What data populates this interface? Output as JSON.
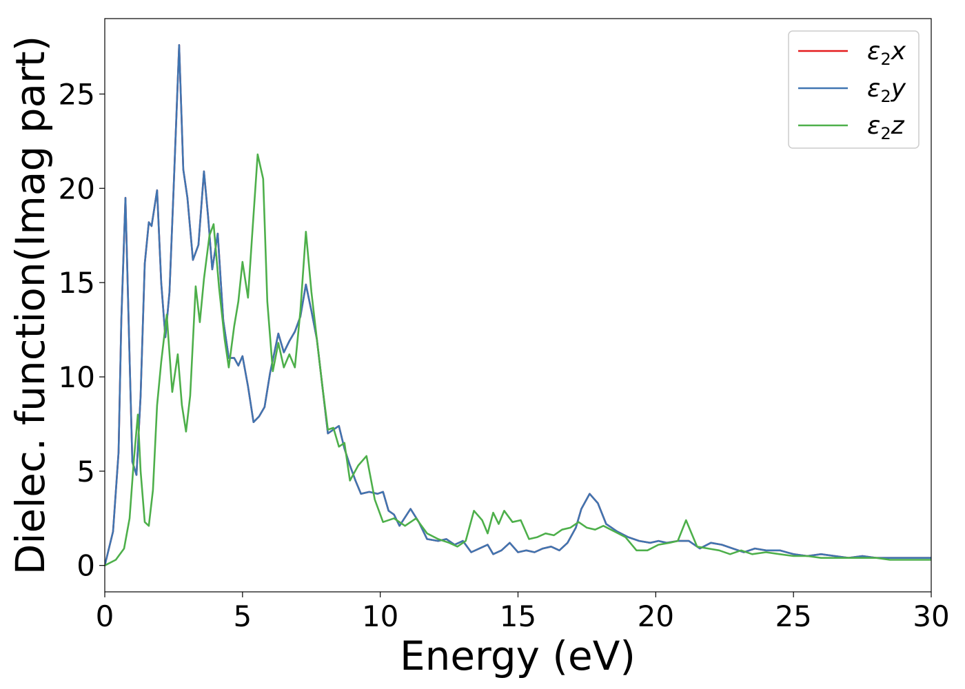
{
  "chart_data": {
    "type": "line",
    "title": "",
    "xlabel": "Energy (eV)",
    "ylabel": "Dielec. function(Imag part)",
    "xlim": [
      0,
      30
    ],
    "ylim": [
      -1.4,
      29
    ],
    "xticks": [
      0,
      5,
      10,
      15,
      20,
      25,
      30
    ],
    "yticks": [
      0,
      5,
      10,
      15,
      20,
      25
    ],
    "grid": false,
    "legend_position": "top-right",
    "series": [
      {
        "name": "ε₂x",
        "legend_main": "ε",
        "legend_sub": "2",
        "legend_suffix": "x",
        "color": "#e41a1c",
        "x": [
          0,
          0.3,
          0.5,
          0.6,
          0.75,
          0.9,
          1.0,
          1.15,
          1.3,
          1.45,
          1.6,
          1.7,
          1.9,
          2.05,
          2.2,
          2.35,
          2.5,
          2.7,
          2.85,
          3.0,
          3.2,
          3.4,
          3.6,
          3.75,
          3.9,
          4.1,
          4.3,
          4.5,
          4.7,
          4.85,
          5.0,
          5.2,
          5.4,
          5.6,
          5.8,
          6.0,
          6.3,
          6.5,
          6.7,
          6.9,
          7.1,
          7.3,
          7.5,
          7.7,
          7.9,
          8.1,
          8.3,
          8.5,
          8.7,
          8.9,
          9.1,
          9.3,
          9.6,
          9.9,
          10.1,
          10.3,
          10.5,
          10.7,
          11.1,
          11.4,
          11.7,
          12.1,
          12.4,
          12.7,
          13.0,
          13.3,
          13.6,
          13.9,
          14.1,
          14.4,
          14.7,
          15.0,
          15.3,
          15.6,
          15.9,
          16.2,
          16.5,
          16.8,
          17.1,
          17.3,
          17.6,
          17.9,
          18.2,
          18.6,
          19.0,
          19.4,
          19.8,
          20.1,
          20.4,
          20.8,
          21.2,
          21.6,
          22.0,
          22.4,
          22.8,
          23.2,
          23.6,
          24.0,
          24.5,
          25.0,
          25.5,
          26.0,
          26.5,
          27.0,
          27.5,
          28.0,
          28.5,
          29.0,
          29.5,
          30.0
        ],
        "y": [
          0,
          1.8,
          6,
          13,
          19.5,
          11,
          5.5,
          4.8,
          9,
          16,
          18.2,
          18,
          19.9,
          15,
          12.1,
          14.5,
          20,
          27.6,
          21,
          19.5,
          16.2,
          17,
          20.9,
          18.5,
          15.7,
          17.6,
          13,
          11,
          11,
          10.6,
          11.1,
          9.5,
          7.6,
          7.9,
          8.4,
          10.2,
          12.3,
          11.3,
          11.9,
          12.4,
          13.2,
          14.9,
          13.5,
          12,
          9.5,
          7,
          7.2,
          7.4,
          6.2,
          5.3,
          4.5,
          3.8,
          3.9,
          3.8,
          3.9,
          2.9,
          2.7,
          2.1,
          3,
          2.3,
          1.4,
          1.3,
          1.4,
          1.1,
          1.3,
          0.7,
          0.9,
          1.1,
          0.6,
          0.8,
          1.2,
          0.7,
          0.8,
          0.7,
          0.9,
          1.0,
          0.8,
          1.2,
          2.0,
          3.0,
          3.8,
          3.3,
          2.2,
          1.8,
          1.5,
          1.3,
          1.2,
          1.3,
          1.2,
          1.3,
          1.3,
          0.9,
          1.2,
          1.1,
          0.9,
          0.7,
          0.9,
          0.8,
          0.8,
          0.6,
          0.5,
          0.6,
          0.5,
          0.4,
          0.5,
          0.4,
          0.4,
          0.4,
          0.4,
          0.4
        ]
      },
      {
        "name": "ε₂y",
        "legend_main": "ε",
        "legend_sub": "2",
        "legend_suffix": "y",
        "color": "#3f75b1",
        "x": [
          0,
          0.3,
          0.5,
          0.6,
          0.75,
          0.9,
          1.0,
          1.15,
          1.3,
          1.45,
          1.6,
          1.7,
          1.9,
          2.05,
          2.2,
          2.35,
          2.5,
          2.7,
          2.85,
          3.0,
          3.2,
          3.4,
          3.6,
          3.75,
          3.9,
          4.1,
          4.3,
          4.5,
          4.7,
          4.85,
          5.0,
          5.2,
          5.4,
          5.6,
          5.8,
          6.0,
          6.3,
          6.5,
          6.7,
          6.9,
          7.1,
          7.3,
          7.5,
          7.7,
          7.9,
          8.1,
          8.3,
          8.5,
          8.7,
          8.9,
          9.1,
          9.3,
          9.6,
          9.9,
          10.1,
          10.3,
          10.5,
          10.7,
          11.1,
          11.4,
          11.7,
          12.1,
          12.4,
          12.7,
          13.0,
          13.3,
          13.6,
          13.9,
          14.1,
          14.4,
          14.7,
          15.0,
          15.3,
          15.6,
          15.9,
          16.2,
          16.5,
          16.8,
          17.1,
          17.3,
          17.6,
          17.9,
          18.2,
          18.6,
          19.0,
          19.4,
          19.8,
          20.1,
          20.4,
          20.8,
          21.2,
          21.6,
          22.0,
          22.4,
          22.8,
          23.2,
          23.6,
          24.0,
          24.5,
          25.0,
          25.5,
          26.0,
          26.5,
          27.0,
          27.5,
          28.0,
          28.5,
          29.0,
          29.5,
          30.0
        ],
        "y": [
          0,
          1.8,
          6,
          13,
          19.5,
          11,
          5.5,
          4.8,
          9,
          16,
          18.2,
          18,
          19.9,
          15,
          12.1,
          14.5,
          20,
          27.6,
          21,
          19.5,
          16.2,
          17,
          20.9,
          18.5,
          15.7,
          17.6,
          13,
          11,
          11,
          10.6,
          11.1,
          9.5,
          7.6,
          7.9,
          8.4,
          10.2,
          12.3,
          11.3,
          11.9,
          12.4,
          13.2,
          14.9,
          13.5,
          12,
          9.5,
          7,
          7.2,
          7.4,
          6.2,
          5.3,
          4.5,
          3.8,
          3.9,
          3.8,
          3.9,
          2.9,
          2.7,
          2.1,
          3,
          2.3,
          1.4,
          1.3,
          1.4,
          1.1,
          1.3,
          0.7,
          0.9,
          1.1,
          0.6,
          0.8,
          1.2,
          0.7,
          0.8,
          0.7,
          0.9,
          1.0,
          0.8,
          1.2,
          2.0,
          3.0,
          3.8,
          3.3,
          2.2,
          1.8,
          1.5,
          1.3,
          1.2,
          1.3,
          1.2,
          1.3,
          1.3,
          0.9,
          1.2,
          1.1,
          0.9,
          0.7,
          0.9,
          0.8,
          0.8,
          0.6,
          0.5,
          0.6,
          0.5,
          0.4,
          0.5,
          0.4,
          0.4,
          0.4,
          0.4,
          0.4
        ]
      },
      {
        "name": "ε₂z",
        "legend_main": "ε",
        "legend_sub": "2",
        "legend_suffix": "z",
        "color": "#4daf4a",
        "x": [
          0,
          0.4,
          0.7,
          0.9,
          1.05,
          1.2,
          1.3,
          1.45,
          1.6,
          1.75,
          1.9,
          2.05,
          2.25,
          2.45,
          2.65,
          2.8,
          2.95,
          3.1,
          3.3,
          3.45,
          3.6,
          3.8,
          3.95,
          4.15,
          4.35,
          4.5,
          4.7,
          4.85,
          5.0,
          5.2,
          5.35,
          5.55,
          5.75,
          5.9,
          6.1,
          6.3,
          6.5,
          6.7,
          6.9,
          7.1,
          7.3,
          7.5,
          7.7,
          7.9,
          8.1,
          8.3,
          8.5,
          8.7,
          8.9,
          9.2,
          9.5,
          9.8,
          10.1,
          10.5,
          10.9,
          11.3,
          11.7,
          12.1,
          12.5,
          12.8,
          13.1,
          13.4,
          13.7,
          13.9,
          14.1,
          14.3,
          14.5,
          14.8,
          15.1,
          15.4,
          15.7,
          16.0,
          16.3,
          16.6,
          16.9,
          17.2,
          17.5,
          17.8,
          18.1,
          18.5,
          18.9,
          19.3,
          19.7,
          20.1,
          20.5,
          20.8,
          21.1,
          21.5,
          21.9,
          22.3,
          22.7,
          23.1,
          23.5,
          24.0,
          24.5,
          25.0,
          25.5,
          26.0,
          26.5,
          27.0,
          27.5,
          28.0,
          28.5,
          29.0,
          29.5,
          30.0
        ],
        "y": [
          0,
          0.3,
          0.9,
          2.5,
          5.5,
          8,
          5,
          2.3,
          2.1,
          4,
          8.5,
          10.8,
          13.3,
          9.2,
          11.2,
          8.5,
          7.1,
          9,
          14.8,
          12.9,
          15.2,
          17.5,
          18.1,
          14.7,
          12,
          10.5,
          12.7,
          14,
          16.1,
          14.2,
          17.5,
          21.8,
          20.5,
          14,
          10.3,
          11.8,
          10.5,
          11.2,
          10.5,
          13.5,
          17.7,
          14.5,
          12,
          9.5,
          7.2,
          7.3,
          6.3,
          6.5,
          4.5,
          5.3,
          5.8,
          3.5,
          2.3,
          2.5,
          2.1,
          2.5,
          1.7,
          1.4,
          1.2,
          1.0,
          1.3,
          2.9,
          2.4,
          1.7,
          2.8,
          2.2,
          2.9,
          2.3,
          2.4,
          1.4,
          1.5,
          1.7,
          1.6,
          1.9,
          2.0,
          2.3,
          2.0,
          1.9,
          2.1,
          1.8,
          1.5,
          0.8,
          0.8,
          1.1,
          1.2,
          1.3,
          2.4,
          1.0,
          0.9,
          0.8,
          0.6,
          0.8,
          0.6,
          0.7,
          0.6,
          0.5,
          0.5,
          0.4,
          0.4,
          0.4,
          0.4,
          0.4,
          0.3,
          0.3,
          0.3,
          0.3
        ]
      }
    ]
  }
}
